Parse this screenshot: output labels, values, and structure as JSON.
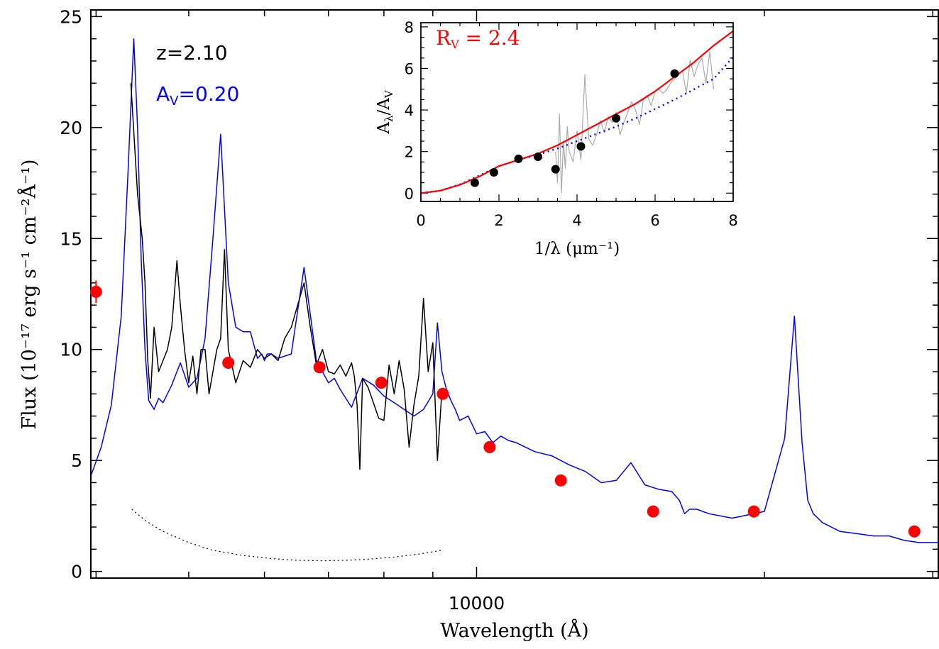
{
  "chart_data": [
    {
      "type": "line",
      "xlabel": "Wavelength (Å)",
      "ylabel": "Flux (10⁻¹⁷ erg s⁻¹ cm⁻²Å⁻¹)",
      "xscale": "log",
      "xlim": [
        3950,
        30400
      ],
      "ylim": [
        -0.3,
        25.3
      ],
      "x_tick_labels": [
        {
          "value": 10000,
          "label": "10000"
        }
      ],
      "y_tick_labels": [
        {
          "value": 0,
          "label": "0"
        },
        {
          "value": 5,
          "label": "5"
        },
        {
          "value": 10,
          "label": "10"
        },
        {
          "value": 15,
          "label": "15"
        },
        {
          "value": 20,
          "label": "20"
        },
        {
          "value": 25,
          "label": "25"
        }
      ],
      "annotations": [
        {
          "text": "z=2.10",
          "color": "#000000"
        },
        {
          "text": "A",
          "sub": "V",
          "suffix": "=0.20",
          "color": "#0000ff"
        }
      ],
      "series": [
        {
          "color": "#0000ff",
          "style": "solid",
          "x": [
            3950,
            4050,
            4150,
            4250,
            4320,
            4380,
            4420,
            4460,
            4500,
            4540,
            4600,
            4650,
            4700,
            4800,
            4900,
            5000,
            5100,
            5200,
            5300,
            5400,
            5500,
            5600,
            5700,
            5800,
            5900,
            5960,
            6000,
            6040,
            6100,
            6200,
            6400,
            6600,
            6800,
            7000,
            7100,
            7200,
            7300,
            7400,
            7600,
            7800,
            8000,
            8200,
            8400,
            8600,
            8800,
            9000,
            9100,
            9200,
            9300,
            9400,
            9500,
            9600,
            9800,
            10000,
            10200,
            10400,
            10600,
            10800,
            11000,
            11500,
            12000,
            12500,
            13000,
            13500,
            14000,
            14500,
            15000,
            15500,
            16000,
            16300,
            16500,
            16700,
            17000,
            17500,
            18000,
            18500,
            19000,
            20000,
            21000,
            21500,
            21900,
            22200,
            22500,
            23000,
            24000,
            25000,
            26000,
            27000,
            28000,
            29000,
            30400
          ],
          "y": [
            4.3,
            5.6,
            7.5,
            11.5,
            18,
            24,
            20,
            14,
            10,
            7.7,
            7.3,
            7.8,
            7.6,
            8.4,
            9.4,
            8.3,
            8.7,
            10.5,
            15,
            19.7,
            13,
            11,
            10.8,
            10.8,
            9.6,
            9.8,
            9.5,
            9.8,
            9.8,
            9.6,
            9.8,
            13.7,
            9.5,
            8.5,
            8.7,
            8.2,
            7.8,
            7.4,
            8.7,
            8.4,
            7.9,
            7.6,
            7.3,
            7.0,
            7.3,
            8.0,
            11.2,
            9.0,
            8.2,
            7.7,
            7.3,
            6.8,
            7.0,
            6.2,
            6.3,
            5.8,
            6.1,
            5.9,
            5.8,
            5.4,
            5.2,
            4.8,
            4.5,
            4.0,
            4.1,
            4.9,
            3.9,
            3.7,
            3.6,
            3.2,
            2.6,
            2.8,
            2.8,
            2.6,
            2.5,
            2.4,
            2.5,
            2.7,
            6.0,
            11.5,
            5.8,
            3.2,
            2.6,
            2.2,
            1.8,
            1.7,
            1.6,
            1.6,
            1.4,
            1.3,
            1.3
          ]
        },
        {
          "color": "#000000",
          "style": "solid",
          "x": [
            4350,
            4420,
            4470,
            4500,
            4530,
            4560,
            4600,
            4650,
            4700,
            4750,
            4800,
            4860,
            4900,
            4950,
            5000,
            5050,
            5100,
            5150,
            5200,
            5250,
            5300,
            5350,
            5400,
            5450,
            5500,
            5600,
            5700,
            5800,
            5900,
            6000,
            6100,
            6200,
            6300,
            6400,
            6500,
            6600,
            6700,
            6800,
            6900,
            7000,
            7100,
            7200,
            7300,
            7400,
            7450,
            7500,
            7550,
            7600,
            7700,
            7800,
            7900,
            8000,
            8100,
            8200,
            8300,
            8400,
            8500,
            8600,
            8700,
            8800,
            8900,
            9000,
            9100,
            9200
          ],
          "y": [
            22,
            17,
            15,
            13,
            9.5,
            7.8,
            11,
            9,
            9.5,
            10,
            11,
            14,
            12,
            10,
            8.5,
            9.7,
            8,
            10,
            10,
            8,
            9,
            10,
            10.5,
            14.5,
            10,
            8.5,
            9.5,
            9.2,
            10,
            9.6,
            9.8,
            9.5,
            10.5,
            11,
            12,
            13,
            11,
            9.3,
            10,
            9.0,
            8.9,
            9.3,
            8.8,
            9.4,
            8.8,
            7.5,
            4.6,
            8.7,
            8.3,
            7.6,
            6.9,
            6.8,
            9.3,
            8.0,
            9.5,
            8.2,
            5.6,
            7.5,
            8.8,
            12.3,
            9.0,
            10.3,
            5.0,
            8.2
          ]
        },
        {
          "color": "#000000",
          "style": "dotted",
          "x": [
            4360,
            4500,
            4700,
            5000,
            5300,
            5700,
            6100,
            6500,
            6900,
            7300,
            7700,
            8200,
            8700,
            9200
          ],
          "y": [
            2.8,
            2.3,
            1.8,
            1.3,
            0.95,
            0.72,
            0.58,
            0.5,
            0.48,
            0.5,
            0.55,
            0.65,
            0.78,
            0.95
          ]
        }
      ],
      "points": {
        "color": "#ff0000",
        "x": [
          4000,
          5500,
          6850,
          7950,
          9220,
          10320,
          12250,
          15300,
          19500,
          28700
        ],
        "y": [
          12.6,
          9.4,
          9.2,
          8.5,
          8.0,
          5.6,
          4.1,
          2.7,
          2.7,
          1.8
        ],
        "yerr_note": "first point has small vertical error bar"
      }
    },
    {
      "type": "line",
      "inset": true,
      "xlabel": "1/λ (μm⁻¹)",
      "ylabel": "A_λ/A_V",
      "xlim": [
        0,
        8
      ],
      "ylim": [
        -0.4,
        8.2
      ],
      "x_tick_labels": [
        {
          "value": 0,
          "label": "0"
        },
        {
          "value": 2,
          "label": "2"
        },
        {
          "value": 4,
          "label": "4"
        },
        {
          "value": 6,
          "label": "6"
        },
        {
          "value": 8,
          "label": "8"
        }
      ],
      "y_tick_labels": [
        {
          "value": 0,
          "label": "0"
        },
        {
          "value": 2,
          "label": "2"
        },
        {
          "value": 4,
          "label": "4"
        },
        {
          "value": 6,
          "label": "6"
        },
        {
          "value": 8,
          "label": "8"
        }
      ],
      "annotations": [
        {
          "text": "R",
          "sub": "V",
          "suffix": " = 2.4",
          "color": "#ff0000"
        }
      ],
      "series": [
        {
          "color": "#ff0000",
          "style": "solid",
          "x": [
            0,
            0.5,
            1.0,
            1.5,
            2.0,
            2.5,
            3.0,
            3.5,
            4.0,
            4.5,
            5.0,
            5.5,
            6.0,
            6.5,
            7.0,
            7.5,
            8.0
          ],
          "y": [
            0,
            0.12,
            0.4,
            0.8,
            1.3,
            1.6,
            1.9,
            2.3,
            2.8,
            3.3,
            3.8,
            4.3,
            4.9,
            5.6,
            6.3,
            7.1,
            7.8
          ]
        },
        {
          "color": "#0000ff",
          "style": "dotted",
          "x": [
            0,
            0.5,
            1.0,
            1.5,
            2.0,
            2.5,
            3.0,
            3.5,
            4.0,
            4.5,
            5.0,
            5.5,
            6.0,
            6.5,
            7.0,
            7.5,
            8.0
          ],
          "y": [
            0,
            0.12,
            0.42,
            0.85,
            1.3,
            1.6,
            1.85,
            2.15,
            2.5,
            2.85,
            3.2,
            3.6,
            4.05,
            4.5,
            5.0,
            5.5,
            6.55
          ]
        },
        {
          "color": "#aaaaaa",
          "style": "solid",
          "x": [
            3.45,
            3.5,
            3.55,
            3.6,
            3.65,
            3.7,
            3.75,
            3.8,
            3.9,
            4.0,
            4.1,
            4.2,
            4.3,
            4.4,
            4.5,
            4.6,
            4.7,
            4.8,
            4.9,
            5.0,
            5.1,
            5.2,
            5.3,
            5.4,
            5.5,
            5.6,
            5.7,
            5.8,
            5.9,
            6.0,
            6.1,
            6.2,
            6.3,
            6.4,
            6.5,
            6.6,
            6.7,
            6.8,
            6.9,
            7.0,
            7.1,
            7.2,
            7.3,
            7.4,
            7.5
          ],
          "y": [
            2.0,
            0.5,
            3.8,
            0.0,
            2.5,
            1.2,
            3.2,
            2.0,
            1.5,
            3.0,
            1.6,
            5.7,
            2.6,
            2.3,
            2.8,
            3.5,
            2.9,
            3.7,
            3.4,
            3.9,
            2.8,
            3.4,
            3.9,
            4.4,
            4.0,
            3.3,
            4.5,
            4.7,
            4.2,
            4.9,
            5.0,
            4.8,
            5.0,
            5.3,
            5.5,
            5.7,
            5.9,
            4.8,
            6.4,
            5.6,
            6.2,
            6.5,
            5.3,
            6.8,
            5.0
          ]
        }
      ],
      "points": {
        "color": "#000000",
        "x": [
          1.38,
          1.87,
          2.5,
          3.0,
          3.45,
          4.1,
          5.0,
          6.5
        ],
        "y": [
          0.5,
          1.0,
          1.65,
          1.75,
          1.15,
          2.25,
          3.6,
          5.75
        ]
      }
    }
  ]
}
